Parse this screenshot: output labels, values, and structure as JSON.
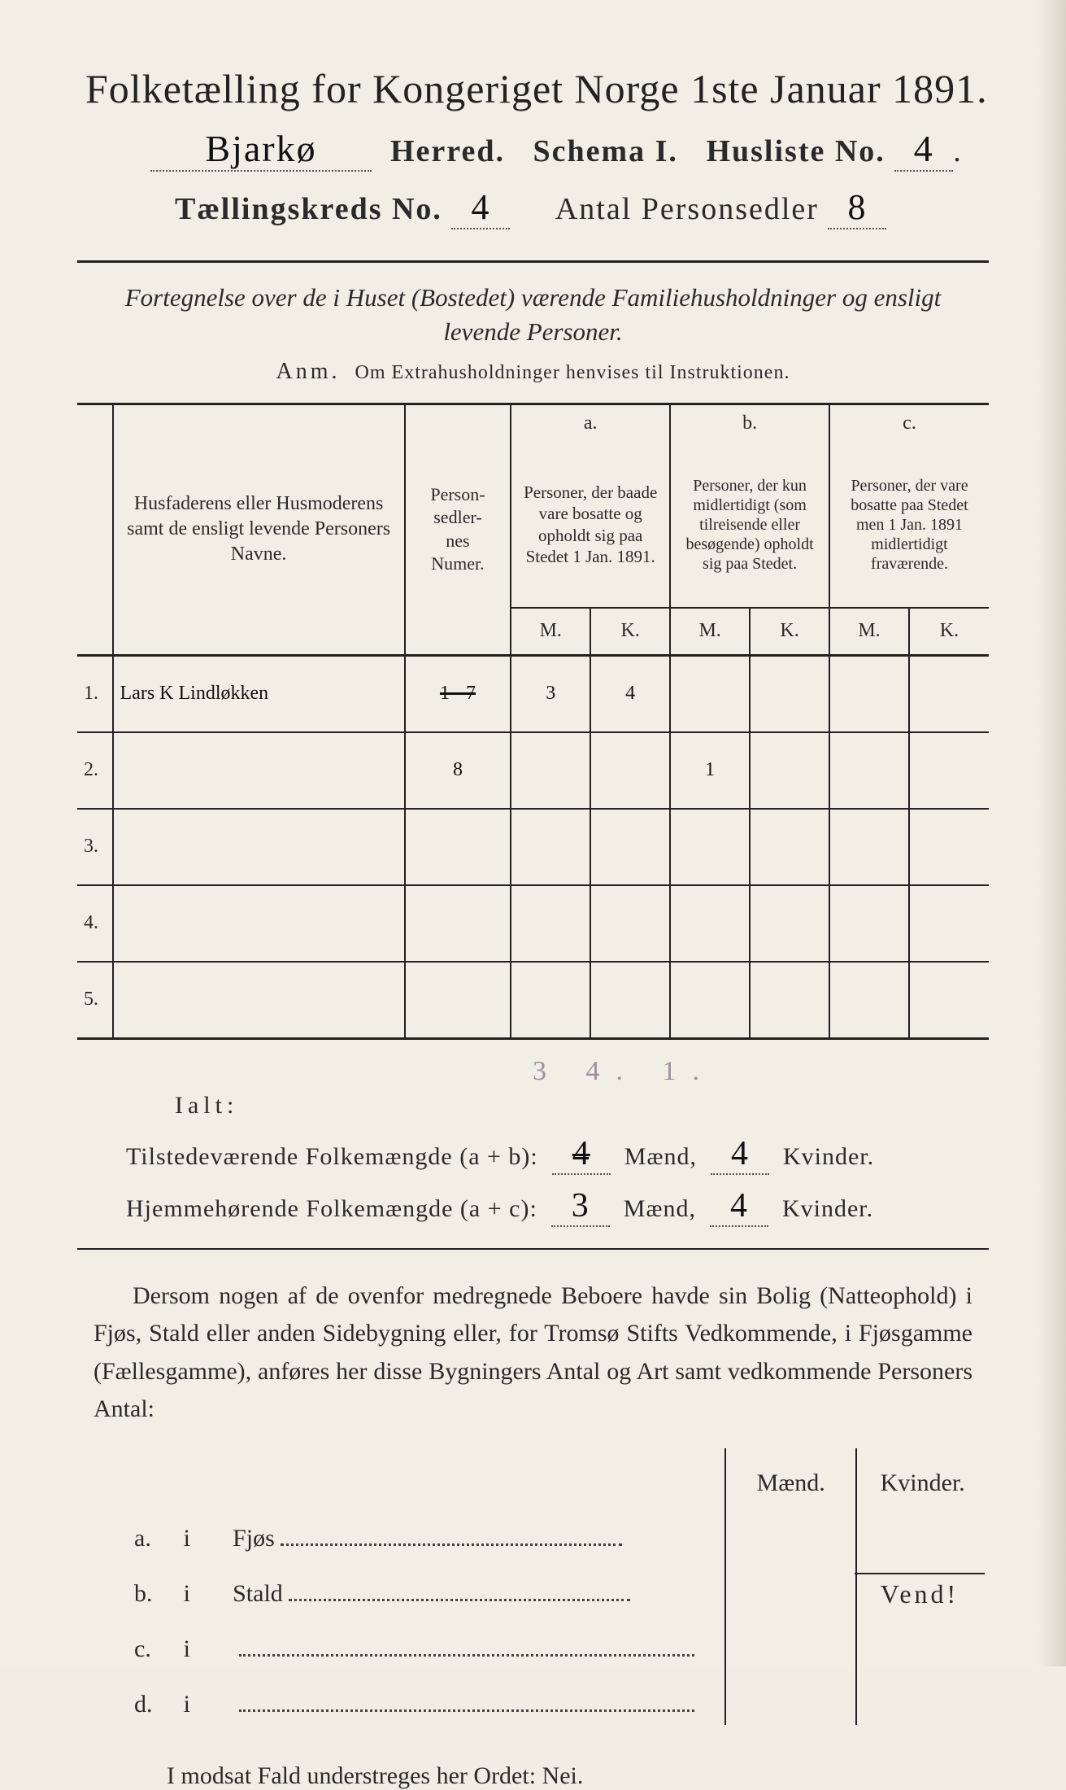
{
  "colors": {
    "paper_bg": "#f1eee5",
    "ink": "#2a2a2a",
    "pencil": "#a08ea8",
    "rule": "#222222",
    "dots": "#555555"
  },
  "typography": {
    "title_pt": 50,
    "line_pt": 38,
    "body_pt": 30,
    "table_hdr_pt": 24,
    "handwriting_family": "cursive"
  },
  "header": {
    "title": "Folketælling for Kongeriget Norge 1ste Januar 1891.",
    "herred_handwritten": "Bjarkø",
    "herred_label": "Herred.",
    "schema_label": "Schema I.",
    "husliste_label": "Husliste No.",
    "husliste_no": "4",
    "kreds_label": "Tællingskreds No.",
    "kreds_no": "4",
    "antal_label": "Antal Personsedler",
    "antal_val": "8"
  },
  "subhead": {
    "line": "Fortegnelse over de i Huset (Bostedet) værende Familiehusholdninger og ensligt levende Personer.",
    "anm_label": "Anm.",
    "anm_text": "Om Extrahusholdninger henvises til Instruktionen."
  },
  "table": {
    "col_name": "Husfaderens eller Husmoderens samt de ensligt levende Personers Navne.",
    "col_sedler": "Person-\nsedler-\nnes\nNumer.",
    "col_a_label": "a.",
    "col_a": "Personer, der baade vare bosatte og opholdt sig paa Stedet 1 Jan. 1891.",
    "col_b_label": "b.",
    "col_b": "Personer, der kun midlertidigt (som tilreisende eller besøgende) opholdt sig paa Stedet.",
    "col_c_label": "c.",
    "col_c": "Personer, der vare bosatte paa Stedet men 1 Jan. 1891 midlertidigt fraværende.",
    "mk_m": "M.",
    "mk_k": "K.",
    "rows": [
      {
        "n": "1.",
        "name": "Lars K Lindløkken",
        "sedler": "1 - 7",
        "sedler_struck": true,
        "a_m": "3",
        "a_k": "4",
        "b_m": "",
        "b_k": "",
        "c_m": "",
        "c_k": ""
      },
      {
        "n": "2.",
        "name": "",
        "sedler": "8",
        "sedler_struck": false,
        "a_m": "",
        "a_k": "",
        "b_m": "1",
        "b_k": "",
        "c_m": "",
        "c_k": ""
      },
      {
        "n": "3.",
        "name": "",
        "sedler": "",
        "sedler_struck": false,
        "a_m": "",
        "a_k": "",
        "b_m": "",
        "b_k": "",
        "c_m": "",
        "c_k": ""
      },
      {
        "n": "4.",
        "name": "",
        "sedler": "",
        "sedler_struck": false,
        "a_m": "",
        "a_k": "",
        "b_m": "",
        "b_k": "",
        "c_m": "",
        "c_k": ""
      },
      {
        "n": "5.",
        "name": "",
        "sedler": "",
        "sedler_struck": false,
        "a_m": "",
        "a_k": "",
        "b_m": "",
        "b_k": "",
        "c_m": "",
        "c_k": ""
      }
    ]
  },
  "totals": {
    "pencil_sums": "3  4.  1.",
    "ialt_label": "Ialt:",
    "tilstede_label": "Tilstedeværende Folkemængde (a + b):",
    "hjemme_label": "Hjemmehørende Folkemængde (a + c):",
    "maend_label": "Mænd,",
    "kvinder_label": "Kvinder.",
    "tilstede_m": "4",
    "tilstede_m_struck": true,
    "tilstede_k": "4",
    "hjemme_m": "3",
    "hjemme_k": "4"
  },
  "buildings": {
    "para": "Dersom nogen af de ovenfor medregnede Beboere havde sin Bolig (Natteophold) i Fjøs, Stald eller anden Sidebygning eller, for Tromsø Stifts Vedkommende, i Fjøsgamme (Fællesgamme), anføres her disse Bygningers Antal og Art samt vedkommende Personers Antal:",
    "hdr_m": "Mænd.",
    "hdr_k": "Kvinder.",
    "rows": [
      {
        "lbl": "a.",
        "i": "i",
        "kind": "Fjøs"
      },
      {
        "lbl": "b.",
        "i": "i",
        "kind": "Stald"
      },
      {
        "lbl": "c.",
        "i": "i",
        "kind": ""
      },
      {
        "lbl": "d.",
        "i": "i",
        "kind": ""
      }
    ]
  },
  "footer": {
    "nei_line": "I modsat Fald understreges her Ordet: Nei.",
    "vend": "Vend!"
  }
}
